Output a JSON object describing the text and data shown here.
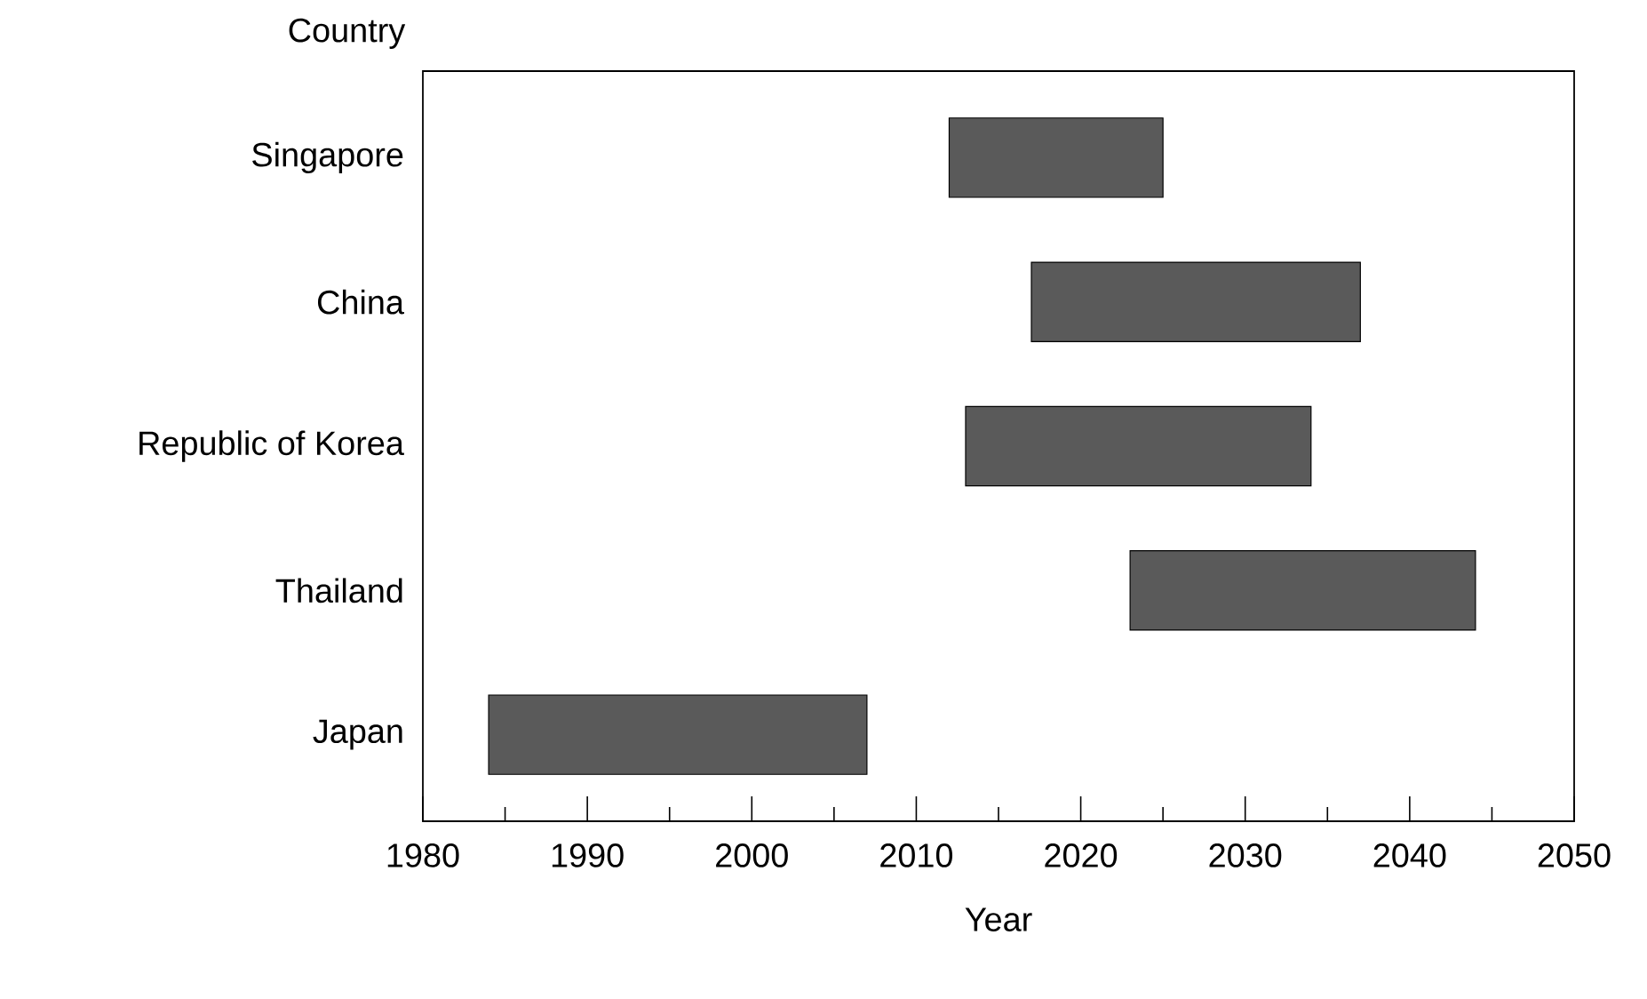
{
  "chart_data": {
    "type": "bar",
    "orientation": "horizontal",
    "categories": [
      "Singapore",
      "China",
      "Republic of Korea",
      "Thailand",
      "Japan"
    ],
    "base": [
      2012,
      2017,
      2013,
      2023,
      1984
    ],
    "values": [
      13,
      20,
      21,
      21,
      23
    ],
    "color": "#5a5a5a",
    "xlabel": "Year",
    "ylabel": "Country",
    "xlim": [
      1980,
      2050
    ],
    "xticks": [
      1980,
      {
        "value": 1985,
        "label": null
      },
      1990,
      {
        "value": 1995,
        "label": null
      },
      2000,
      {
        "value": 2005,
        "label": null
      },
      2010,
      {
        "value": 2015,
        "label": null
      },
      2020,
      {
        "value": 2025,
        "label": null
      },
      2030,
      {
        "value": 2035,
        "label": null
      },
      2040,
      {
        "value": 2045,
        "label": null
      },
      2050
    ]
  }
}
